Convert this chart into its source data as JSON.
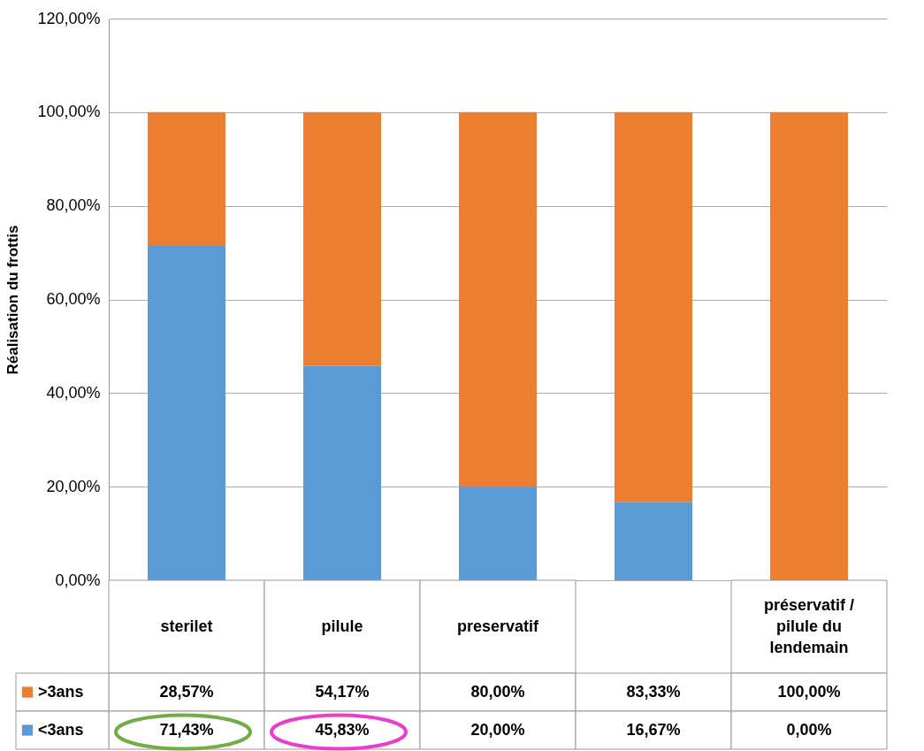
{
  "chart_data": {
    "type": "bar",
    "stacked": true,
    "ylabel": "Réalisation du frottis",
    "categories": [
      "sterilet",
      "pilule",
      "preservatif",
      null,
      "préservatif / pilule du lendemain"
    ],
    "series": [
      {
        "name": "<3ans",
        "color": "#5b9bd5",
        "values": [
          71.43,
          45.83,
          20,
          16.67,
          0
        ],
        "value_labels": [
          "71,43%",
          "45,83%",
          "20,00%",
          "16,67%",
          "0,00%"
        ]
      },
      {
        "name": ">3ans",
        "color": "#ed7d31",
        "values": [
          28.57,
          54.17,
          80,
          83.33,
          100
        ],
        "value_labels": [
          "28,57%",
          "54,17%",
          "80,00%",
          "83,33%",
          "100,00%"
        ]
      }
    ],
    "ylim": [
      0,
      120
    ],
    "yticks": [
      {
        "value": 0,
        "label": "0,00%"
      },
      {
        "value": 20,
        "label": "20,00%"
      },
      {
        "value": 40,
        "label": "40,00%"
      },
      {
        "value": 60,
        "label": "60,00%"
      },
      {
        "value": 80,
        "label": "80,00%"
      },
      {
        "value": 100,
        "label": "100,00%"
      },
      {
        "value": 120,
        "label": "120,00%"
      }
    ],
    "grid": "y",
    "legend": "bottom"
  }
}
